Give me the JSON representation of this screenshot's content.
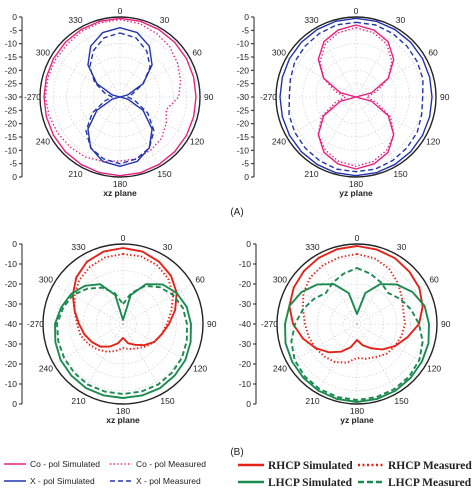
{
  "panels": [
    {
      "name": "panel-a",
      "label": "(A)"
    },
    {
      "name": "panel-b",
      "label": "(B)"
    }
  ],
  "chart_data": [
    {
      "type": "polar",
      "plane": "xz plane",
      "r_ticks": [
        "0",
        "-5",
        "-10",
        "-15",
        "-20",
        "-25",
        "-30",
        "-25",
        "-20",
        "-15",
        "-10",
        "-5",
        "0"
      ],
      "angle_labels": [
        "0",
        "30",
        "60",
        "90",
        "120",
        "150",
        "180",
        "210",
        "240",
        "-270",
        "300",
        "330"
      ],
      "rlim": [
        -30,
        0
      ],
      "grid": true,
      "series": [
        {
          "name": "Co - pol Simulated",
          "color": "#e8207e",
          "style": "solid",
          "r": [
            -0.5,
            -0.6,
            -0.8,
            -1,
            -1.2,
            -1.4,
            -1.5,
            -1.4,
            -1.2,
            -1,
            -0.8,
            -0.6,
            -0.5,
            -0.6,
            -0.8,
            -1,
            -1.2,
            -1.4,
            -1.5,
            -1.4,
            -1.2,
            -1,
            -0.8,
            -0.6,
            -0.5
          ]
        },
        {
          "name": "Co - pol Measured",
          "color": "#e8207e",
          "style": "dotted",
          "r": [
            -1,
            -1.5,
            -2.5,
            -3.5,
            -5,
            -6.5,
            -8,
            -12,
            -10,
            -8,
            -7,
            -6,
            -6,
            -5,
            -4,
            -3.5,
            -3,
            -2.5,
            -2,
            -2,
            -2,
            -2,
            -1.5,
            -1.2,
            -1
          ]
        },
        {
          "name": "X - pol Simulated",
          "color": "#2233b0",
          "style": "solid",
          "r": [
            -4,
            -5,
            -8,
            -13,
            -20,
            -27,
            -30,
            -27,
            -20,
            -13,
            -8,
            -5,
            -4,
            -5,
            -8,
            -13,
            -20,
            -27,
            -30,
            -27,
            -20,
            -13,
            -8,
            -5,
            -4
          ]
        },
        {
          "name": "X - pol Measured",
          "color": "#2233b0",
          "style": "dashed",
          "r": [
            -6,
            -7,
            -10,
            -14,
            -20,
            -25,
            -27,
            -24,
            -18,
            -12,
            -8,
            -6,
            -5,
            -6,
            -8,
            -12,
            -18,
            -24,
            -27,
            -24,
            -19,
            -14,
            -10,
            -7,
            -6
          ]
        }
      ]
    },
    {
      "type": "polar",
      "plane": "yz plane",
      "r_ticks": [
        "0",
        "-5",
        "-10",
        "-15",
        "-20",
        "-25",
        "-30",
        "-25",
        "-20",
        "-15",
        "-10",
        "-5",
        "0"
      ],
      "angle_labels": [
        "0",
        "30",
        "60",
        "90",
        "120",
        "150",
        "180",
        "210",
        "240",
        "-270",
        "300",
        "330"
      ],
      "rlim": [
        -30,
        0
      ],
      "grid": true,
      "series": [
        {
          "name": "Co - pol Simulated",
          "color": "#e8207e",
          "style": "solid",
          "r": [
            -3,
            -4,
            -6,
            -10,
            -16,
            -24,
            -30,
            -24,
            -16,
            -10,
            -6,
            -4,
            -3,
            -4,
            -6,
            -10,
            -16,
            -24,
            -30,
            -24,
            -16,
            -10,
            -6,
            -4,
            -3
          ]
        },
        {
          "name": "Co - pol Measured",
          "color": "#e8207e",
          "style": "dotted",
          "r": [
            -4,
            -5,
            -7,
            -11,
            -16,
            -22,
            -26,
            -22,
            -15,
            -10,
            -7,
            -5,
            -4,
            -5,
            -7,
            -10,
            -15,
            -22,
            -26,
            -22,
            -16,
            -11,
            -7,
            -5,
            -4
          ]
        },
        {
          "name": "X - pol Simulated",
          "color": "#2233b0",
          "style": "solid",
          "r": [
            -0.5,
            -0.6,
            -0.8,
            -1,
            -1.2,
            -1.4,
            -1.5,
            -1.4,
            -1.2,
            -1,
            -0.8,
            -0.6,
            -0.5,
            -0.6,
            -0.8,
            -1,
            -1.2,
            -1.4,
            -1.5,
            -1.4,
            -1.2,
            -1,
            -0.8,
            -0.6,
            -0.5
          ]
        },
        {
          "name": "X - pol Measured",
          "color": "#2233b0",
          "style": "dashed",
          "r": [
            -2,
            -2,
            -2.5,
            -3,
            -3.5,
            -4,
            -5,
            -4.5,
            -3.5,
            -3,
            -2.5,
            -2,
            -2,
            -2,
            -2.5,
            -3,
            -3.5,
            -4,
            -5,
            -4.5,
            -3.5,
            -3,
            -2.5,
            -2,
            -2
          ]
        }
      ]
    },
    {
      "type": "polar",
      "plane": "xz plane",
      "r_ticks": [
        "0",
        "-10",
        "-20",
        "-30",
        "-40",
        "-30",
        "-20",
        "-10",
        "0"
      ],
      "angle_labels": [
        "0",
        "30",
        "60",
        "90",
        "120",
        "150",
        "180",
        "210",
        "240",
        "-270",
        "300",
        "330"
      ],
      "rlim": [
        -40,
        0
      ],
      "grid": true,
      "series": [
        {
          "name": "RHCP Simulated",
          "color": "#e2231a",
          "style": "solid",
          "r": [
            -2,
            -2.5,
            -4,
            -6,
            -9,
            -13,
            -17,
            -20,
            -22,
            -25,
            -28,
            -30,
            -33,
            -30,
            -27,
            -24,
            -22,
            -20,
            -18,
            -15,
            -11,
            -7,
            -4,
            -2.5,
            -2
          ]
        },
        {
          "name": "RHCP Measured",
          "color": "#e2231a",
          "style": "dotted",
          "r": [
            -5,
            -5,
            -6,
            -8,
            -11,
            -15,
            -18,
            -20,
            -22,
            -24,
            -26,
            -27,
            -28,
            -26,
            -24,
            -22,
            -20,
            -18,
            -17,
            -15,
            -12,
            -9,
            -7,
            -5.5,
            -5
          ]
        },
        {
          "name": "LHCP Simulated",
          "color": "#1b8a4f",
          "style": "solid",
          "r": [
            -38,
            -25,
            -17,
            -12,
            -9,
            -7,
            -6,
            -5,
            -4,
            -3.5,
            -3,
            -3,
            -3,
            -3,
            -3,
            -3.5,
            -4,
            -5,
            -6,
            -8,
            -10,
            -13,
            -17,
            -25,
            -38
          ]
        },
        {
          "name": "LHCP Measured",
          "color": "#1b8a4f",
          "style": "dashed",
          "r": [
            -30,
            -24,
            -18,
            -14,
            -11,
            -9,
            -8,
            -7,
            -6,
            -5.5,
            -5,
            -5,
            -5,
            -5,
            -5,
            -5.5,
            -6,
            -6.5,
            -7,
            -9,
            -11,
            -15,
            -19,
            -24,
            -30
          ]
        }
      ]
    },
    {
      "type": "polar",
      "plane": "yz plane",
      "r_ticks": [
        "0",
        "-10",
        "-20",
        "-30",
        "-40",
        "-30",
        "-20",
        "-10",
        "0"
      ],
      "angle_labels": [
        "0",
        "30",
        "60",
        "90",
        "120",
        "150",
        "180",
        "210",
        "240",
        "-270",
        "300",
        "330"
      ],
      "rlim": [
        -40,
        0
      ],
      "grid": true,
      "series": [
        {
          "name": "RHCP Simulated",
          "color": "#e2231a",
          "style": "solid",
          "r": [
            -1,
            -1.5,
            -2,
            -3,
            -4,
            -6,
            -9,
            -14,
            -18,
            -22,
            -26,
            -29,
            -32,
            -28,
            -24,
            -20,
            -16,
            -12,
            -8,
            -5,
            -3.5,
            -2.5,
            -1.8,
            -1.3,
            -1
          ]
        },
        {
          "name": "RHCP Measured",
          "color": "#e2231a",
          "style": "dotted",
          "r": [
            -5,
            -6,
            -8,
            -11,
            -14,
            -16,
            -16,
            -17,
            -18,
            -19,
            -21,
            -22,
            -23,
            -20,
            -18,
            -17,
            -16,
            -15,
            -14,
            -12,
            -9,
            -7,
            -6,
            -5.5,
            -5
          ]
        },
        {
          "name": "LHCP Simulated",
          "color": "#1b8a4f",
          "style": "solid",
          "r": [
            -35,
            -24,
            -17,
            -12,
            -8,
            -5,
            -4,
            -3,
            -2.5,
            -2,
            -1.5,
            -1.2,
            -1,
            -1.2,
            -1.5,
            -2,
            -2.5,
            -3,
            -4,
            -5,
            -8,
            -12,
            -17,
            -24,
            -35
          ]
        },
        {
          "name": "LHCP Measured",
          "color": "#1b8a4f",
          "style": "dashed",
          "r": [
            -12,
            -14,
            -16,
            -18,
            -15,
            -12,
            -9,
            -6,
            -4,
            -3,
            -2.5,
            -2.2,
            -2,
            -2.2,
            -2.5,
            -3,
            -4,
            -6,
            -9,
            -12,
            -15,
            -18,
            -16,
            -14,
            -12
          ]
        }
      ]
    }
  ],
  "legend": {
    "left": [
      {
        "label": "Co - pol Simulated",
        "color": "#e8207e",
        "style": "solid"
      },
      {
        "label": "Co - pol Measured",
        "color": "#e8207e",
        "style": "dotted"
      },
      {
        "label": "X - pol Simulated",
        "color": "#2233b0",
        "style": "solid"
      },
      {
        "label": "X - pol Measured",
        "color": "#2233b0",
        "style": "dashed"
      }
    ],
    "right": [
      {
        "label": "RHCP Simulated",
        "color": "#e2231a",
        "style": "solid"
      },
      {
        "label": "RHCP Measured",
        "color": "#e2231a",
        "style": "dotted"
      },
      {
        "label": "LHCP Simulated",
        "color": "#1b8a4f",
        "style": "solid"
      },
      {
        "label": "LHCP Measured",
        "color": "#1b8a4f",
        "style": "dashed"
      }
    ]
  }
}
